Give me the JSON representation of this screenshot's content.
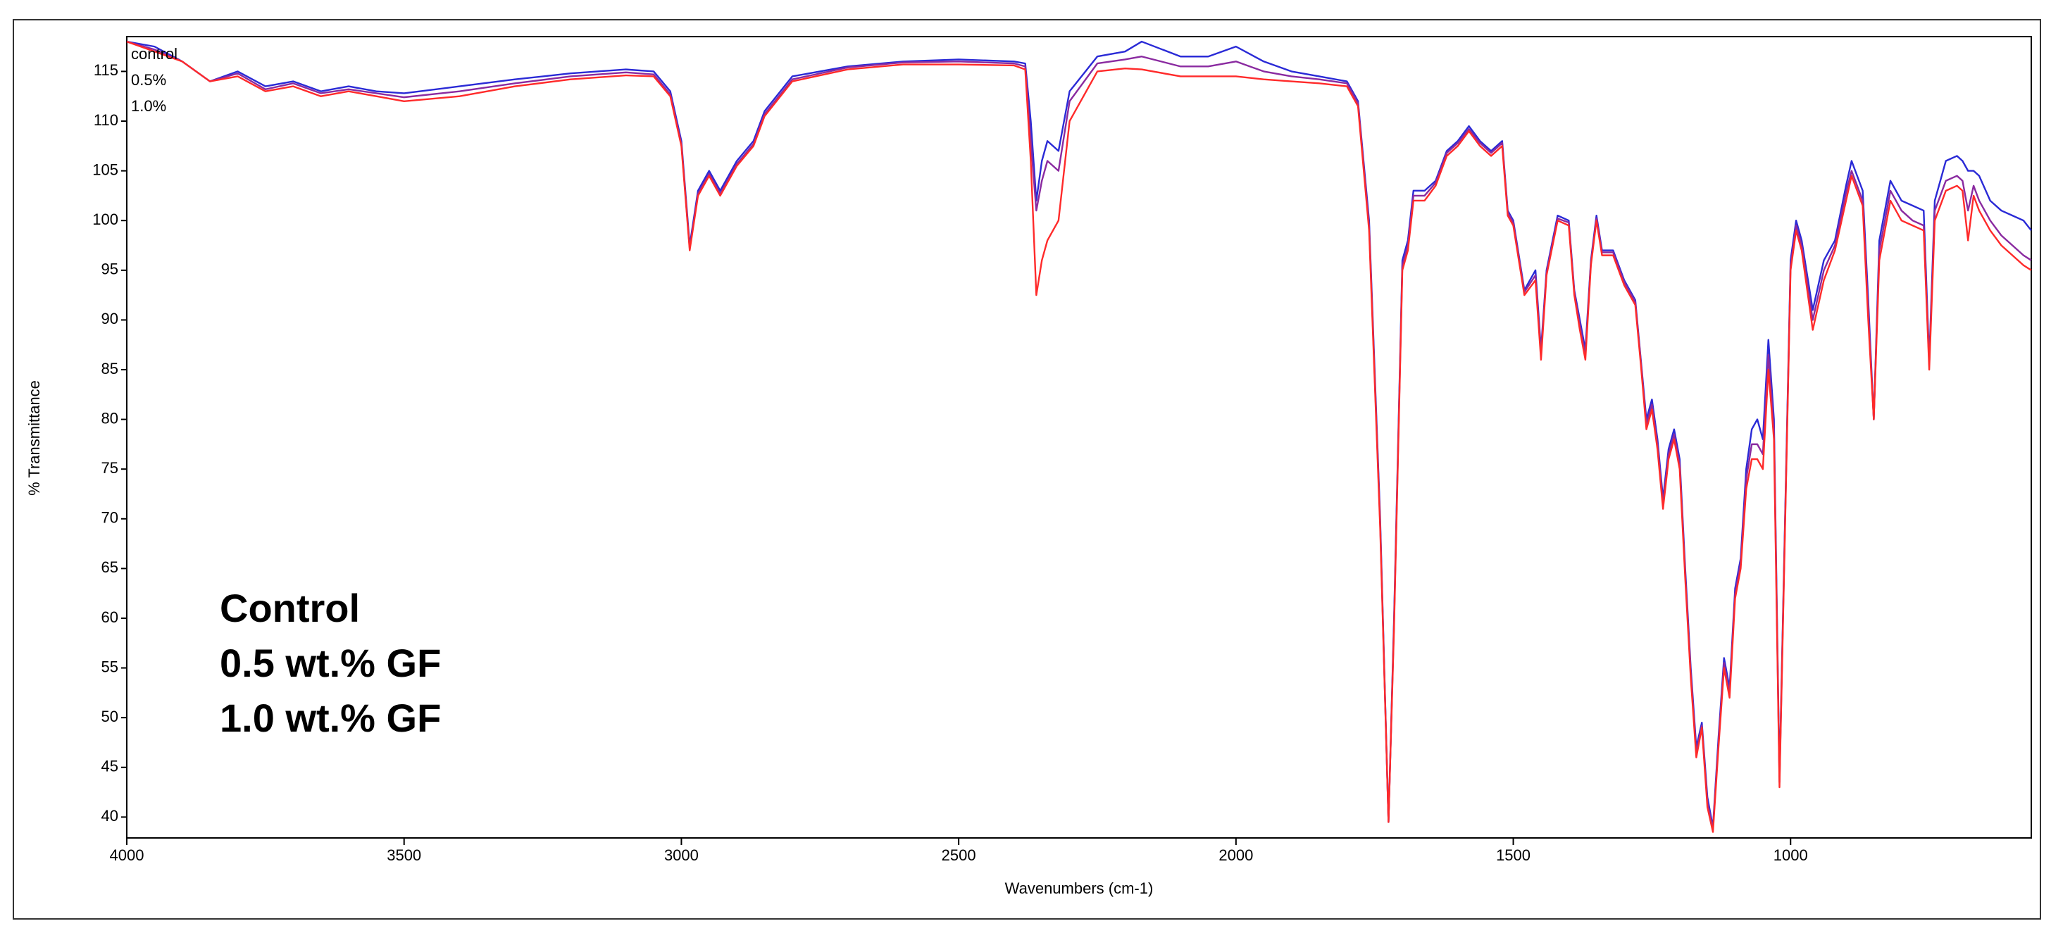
{
  "chart_data": {
    "type": "line",
    "x_label": "Wavenumbers (cm-1)",
    "y_label": "% Transmittance",
    "xlim": [
      4000,
      566
    ],
    "ylim": [
      37.9,
      118.5
    ],
    "xticks": [
      4000,
      3500,
      3000,
      2500,
      2000,
      1500,
      1000
    ],
    "yticks": [
      40,
      45,
      50,
      55,
      60,
      65,
      70,
      75,
      80,
      85,
      90,
      95,
      100,
      105,
      110,
      115
    ],
    "grid": false,
    "legend": "top-left",
    "x": [
      4000,
      3950,
      3900,
      3850,
      3800,
      3750,
      3700,
      3650,
      3600,
      3550,
      3500,
      3400,
      3300,
      3200,
      3100,
      3050,
      3020,
      3000,
      2985,
      2970,
      2950,
      2930,
      2900,
      2870,
      2850,
      2800,
      2700,
      2600,
      2500,
      2400,
      2380,
      2370,
      2360,
      2350,
      2340,
      2320,
      2300,
      2250,
      2200,
      2170,
      2100,
      2050,
      2000,
      1950,
      1900,
      1850,
      1800,
      1780,
      1760,
      1740,
      1725,
      1715,
      1700,
      1690,
      1680,
      1660,
      1640,
      1620,
      1600,
      1580,
      1560,
      1540,
      1520,
      1510,
      1500,
      1480,
      1460,
      1450,
      1440,
      1420,
      1400,
      1390,
      1380,
      1370,
      1360,
      1350,
      1340,
      1320,
      1300,
      1280,
      1270,
      1260,
      1250,
      1240,
      1230,
      1220,
      1210,
      1200,
      1190,
      1180,
      1170,
      1160,
      1150,
      1140,
      1130,
      1120,
      1110,
      1100,
      1090,
      1080,
      1070,
      1060,
      1050,
      1040,
      1030,
      1020,
      1010,
      1000,
      990,
      980,
      960,
      940,
      920,
      900,
      890,
      870,
      860,
      850,
      840,
      820,
      800,
      780,
      760,
      750,
      740,
      720,
      700,
      690,
      680,
      670,
      660,
      640,
      620,
      600,
      580,
      566
    ],
    "series": [
      {
        "name": "control",
        "color": "#2a2ad6",
        "legend_color": "#3333dd",
        "values": [
          118,
          117.5,
          116,
          114,
          115,
          113.5,
          114,
          113,
          113.5,
          113,
          112.8,
          113.5,
          114.2,
          114.8,
          115.2,
          115,
          113,
          108,
          97.5,
          103,
          105,
          103,
          106,
          108,
          111,
          114.5,
          115.5,
          116,
          116.2,
          116,
          115.8,
          110,
          102,
          106,
          108,
          107,
          113,
          116.5,
          117,
          118,
          116.5,
          116.5,
          117.5,
          116,
          115,
          114.5,
          114,
          112,
          100,
          70,
          39.5,
          60,
          96,
          98,
          103,
          103,
          104,
          107,
          108,
          109.5,
          108,
          107,
          108,
          101,
          100,
          93,
          95,
          87,
          95,
          100.5,
          100,
          93,
          90,
          87,
          96,
          100.5,
          97,
          97,
          94,
          92,
          86,
          80,
          82,
          78,
          72,
          77,
          79,
          76,
          65,
          55,
          47,
          49.5,
          42,
          39,
          48,
          56,
          53,
          63,
          66,
          75,
          79,
          80,
          78,
          88,
          80,
          44,
          70,
          96,
          100,
          98,
          91,
          96,
          98,
          103.5,
          106,
          103,
          92,
          80,
          98,
          104,
          102,
          101.5,
          101,
          86,
          102,
          106,
          106.5,
          106,
          105,
          105,
          104.5,
          102,
          101,
          100.5,
          100,
          99
        ]
      },
      {
        "name": "0.5%",
        "color": "#8a2aa0",
        "legend_color": "#9933aa",
        "values": [
          118,
          117.2,
          116,
          114,
          114.8,
          113.2,
          113.8,
          112.8,
          113.2,
          112.8,
          112.4,
          113,
          113.8,
          114.5,
          114.9,
          114.7,
          112.7,
          107.7,
          97.2,
          102.7,
          104.7,
          102.7,
          105.7,
          107.7,
          110.7,
          114.2,
          115.4,
          115.9,
          116,
          115.8,
          115.5,
          108,
          101,
          104,
          106,
          105,
          112,
          115.8,
          116.2,
          116.5,
          115.5,
          115.5,
          116,
          115,
          114.5,
          114.2,
          113.8,
          111.8,
          99.5,
          69.5,
          39.5,
          59.5,
          95.5,
          97.5,
          102.5,
          102.5,
          103.8,
          106.8,
          107.8,
          109.2,
          107.8,
          106.8,
          107.8,
          100.8,
          99.8,
          92.8,
          94.5,
          86.5,
          94.8,
          100.2,
          99.8,
          92.8,
          89.5,
          86.5,
          95.8,
          100.2,
          96.8,
          96.8,
          93.8,
          91.8,
          85.8,
          79.5,
          81.5,
          77.5,
          71.5,
          76.5,
          78.5,
          75.5,
          64.5,
          54.5,
          46.5,
          49.2,
          41.5,
          38.8,
          47.5,
          55.5,
          52.5,
          62.5,
          65.5,
          74,
          77.5,
          77.5,
          76.5,
          86.5,
          79,
          43.5,
          69.5,
          95.5,
          99.5,
          97.5,
          90,
          95,
          97.5,
          102.8,
          105,
          102,
          91,
          80,
          97,
          103,
          101,
          100,
          99.5,
          85.5,
          101,
          104,
          104.5,
          104,
          101,
          103.5,
          102,
          100,
          98.5,
          97.5,
          96.5,
          96
        ]
      },
      {
        "name": "1.0%",
        "color": "#ff2a2a",
        "legend_color": "#ff3333",
        "values": [
          118,
          117,
          116,
          114,
          114.5,
          113,
          113.5,
          112.5,
          113,
          112.5,
          112,
          112.5,
          113.5,
          114.2,
          114.6,
          114.5,
          112.5,
          107.5,
          97,
          102.5,
          104.5,
          102.5,
          105.5,
          107.5,
          110.5,
          114,
          115.2,
          115.7,
          115.7,
          115.6,
          115.2,
          106,
          92.5,
          96,
          98,
          100,
          110,
          115,
          115.3,
          115.2,
          114.5,
          114.5,
          114.5,
          114.2,
          114,
          113.8,
          113.5,
          111.5,
          99,
          69,
          39.5,
          59,
          95,
          97,
          102,
          102,
          103.5,
          106.5,
          107.5,
          109,
          107.5,
          106.5,
          107.5,
          100.5,
          99.5,
          92.5,
          94,
          86,
          94.5,
          100,
          99.5,
          92.5,
          89,
          86,
          95.5,
          100,
          96.5,
          96.5,
          93.5,
          91.5,
          85.5,
          79,
          81,
          77,
          71,
          76,
          78,
          75,
          64,
          54,
          46,
          49,
          41,
          38.5,
          47,
          55,
          52,
          62,
          65,
          73,
          76,
          76,
          75,
          85,
          78,
          43,
          69,
          95,
          99,
          97,
          89,
          94,
          97,
          102,
          104.5,
          101.5,
          90,
          80,
          96,
          102,
          100,
          99.5,
          99,
          85,
          100,
          103,
          103.5,
          103,
          98,
          102.5,
          101,
          99,
          97.5,
          96.5,
          95.5,
          95
        ]
      }
    ],
    "annotations": [
      {
        "text": "Control",
        "color": "#1f2fd0"
      },
      {
        "text": "0.5 wt.% GF",
        "color": "#b01010"
      },
      {
        "text": "1.0 wt.% GF",
        "color": "#ff2020"
      }
    ]
  }
}
